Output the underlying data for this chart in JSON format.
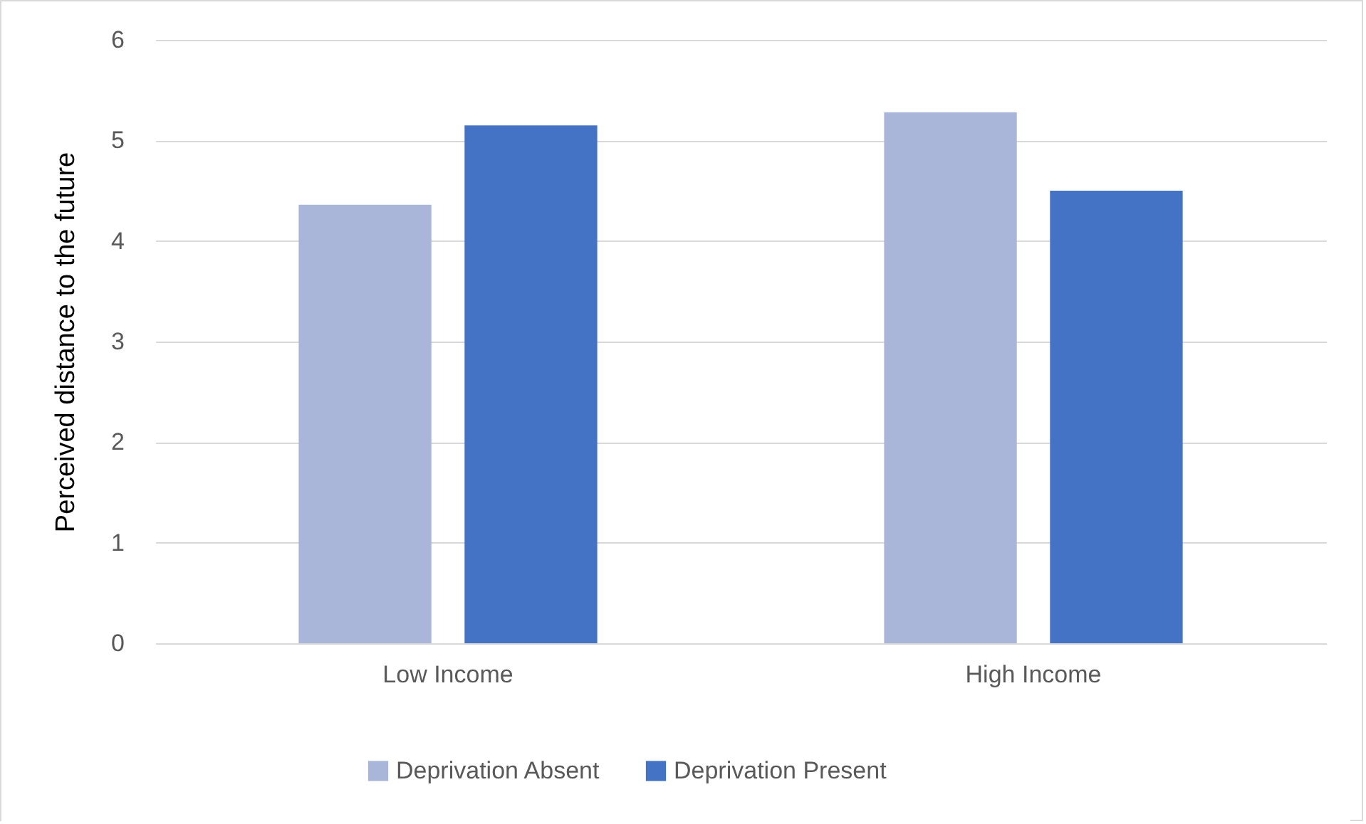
{
  "chart_data": {
    "type": "bar",
    "ylabel": "Perceived distance to the future",
    "categories": [
      "Low Income",
      "High Income"
    ],
    "series": [
      {
        "name": "Deprivation Absent",
        "color": "#a9b6da",
        "values": [
          4.36,
          5.28
        ]
      },
      {
        "name": "Deprivation Present",
        "color": "#4472c4",
        "values": [
          5.15,
          4.5
        ]
      }
    ],
    "ylim": [
      0,
      6
    ],
    "yticks": [
      0,
      1,
      2,
      3,
      4,
      5,
      6
    ],
    "grid": "y",
    "legend": "bottom"
  }
}
